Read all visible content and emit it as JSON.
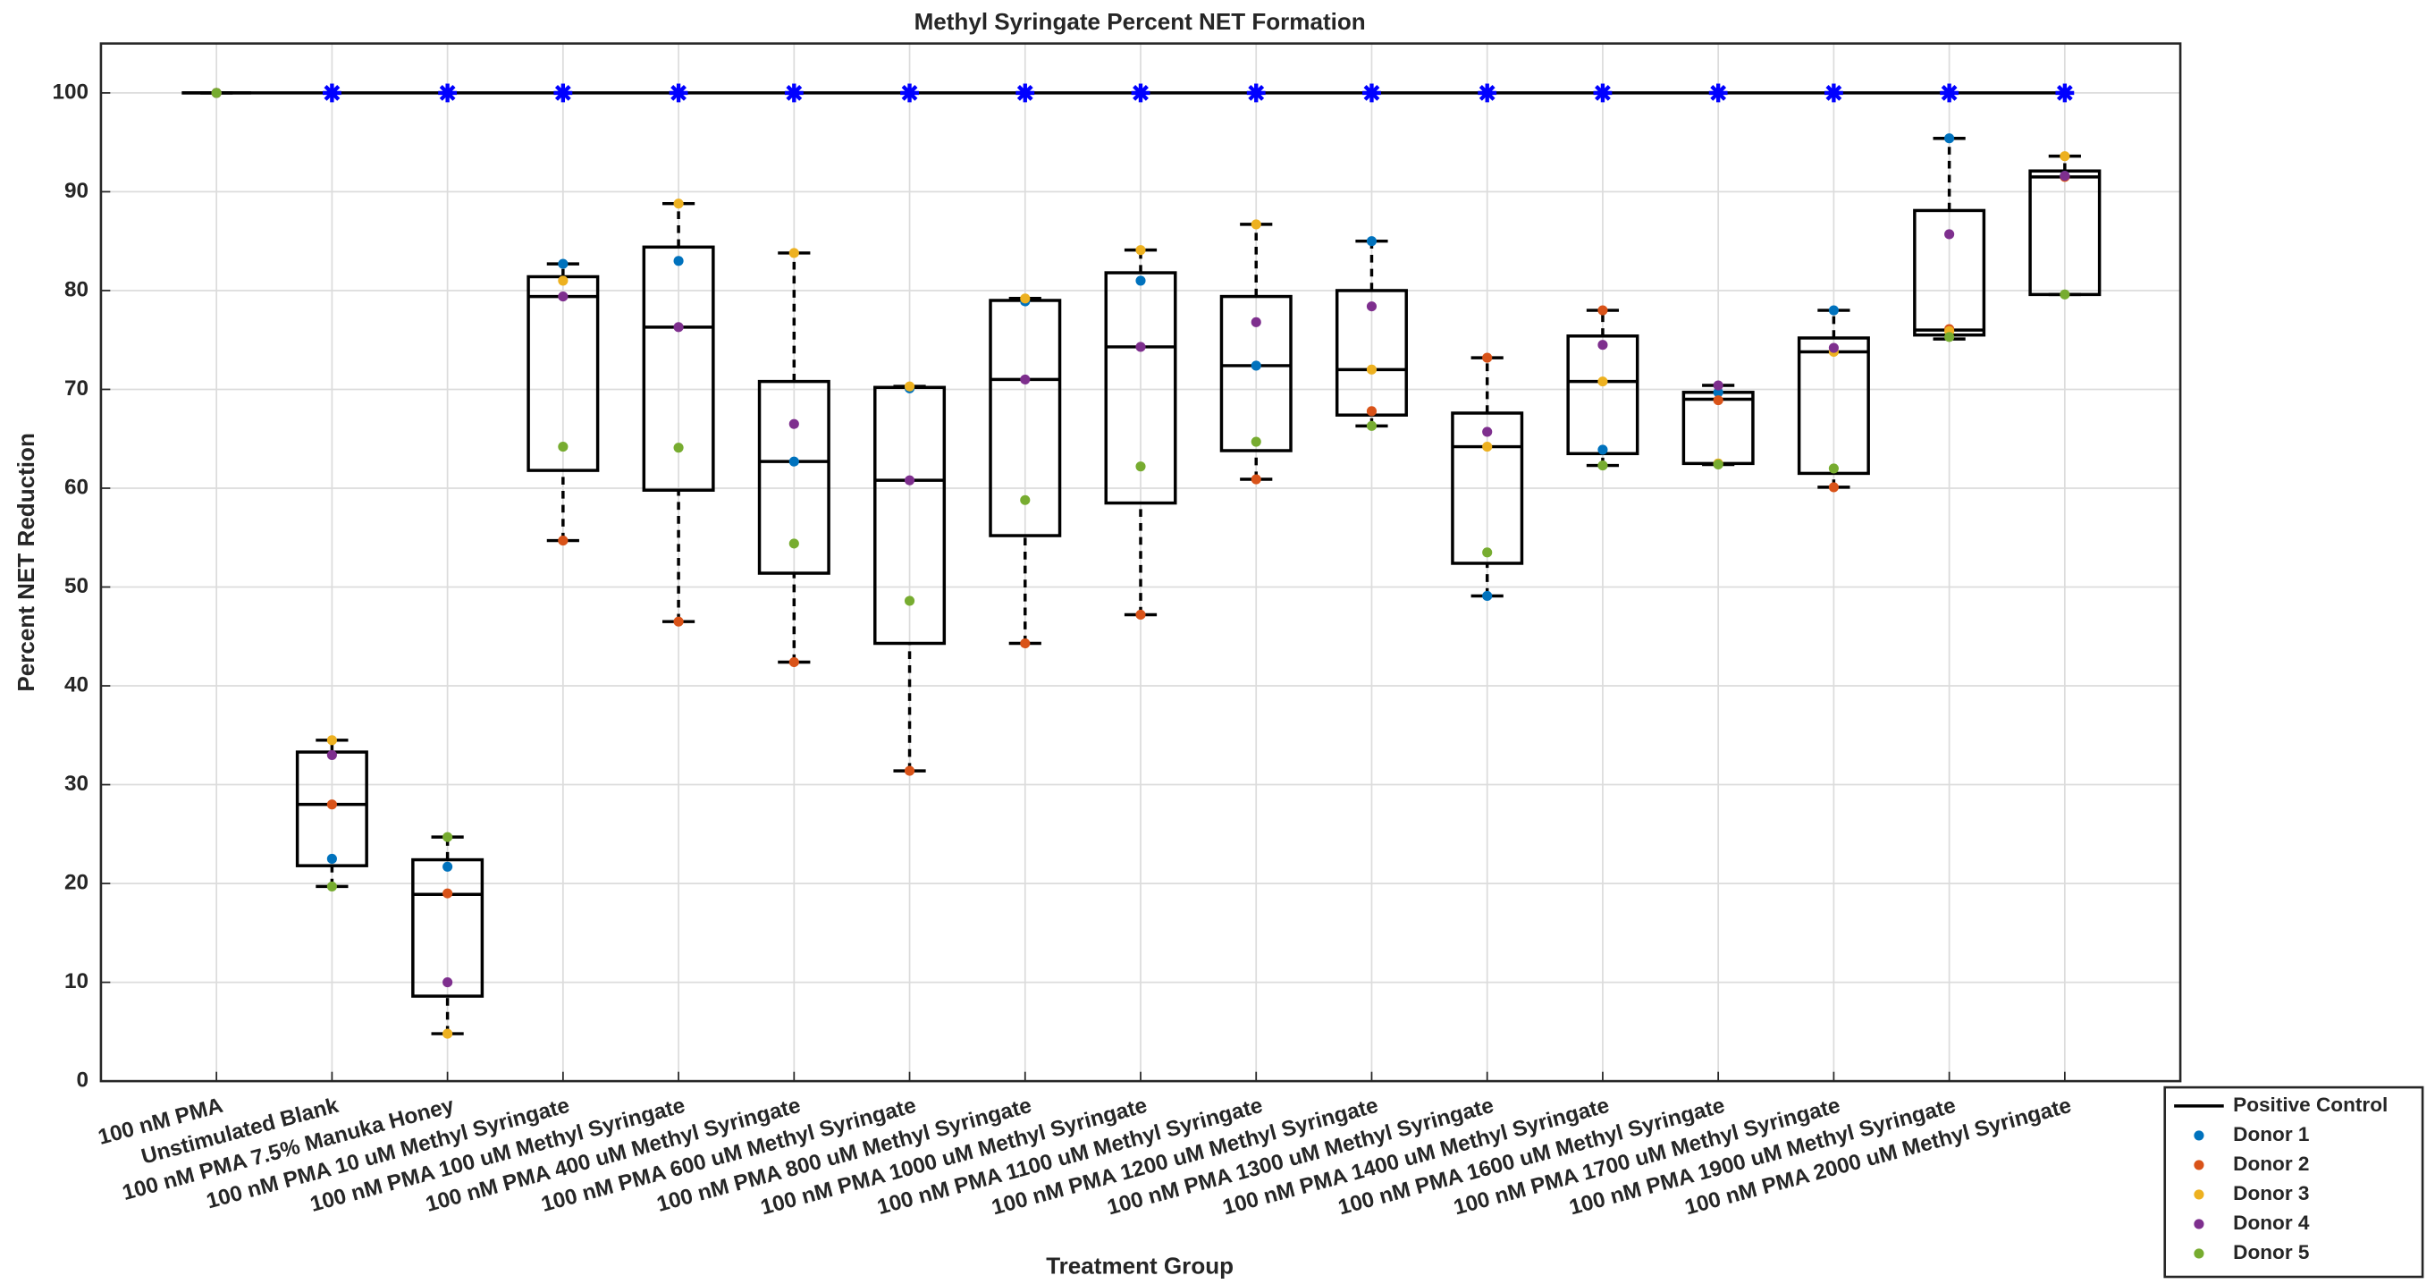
{
  "chart_data": {
    "type": "box",
    "title": "Methyl Syringate Percent NET Formation",
    "x_label": "Treatment Group",
    "y_label": "Percent NET Reduction",
    "categories": [
      "100 nM PMA",
      "Unstimulated Blank",
      "100 nM PMA 7.5% Manuka Honey",
      "100 nM PMA 10 uM Methyl Syringate",
      "100 nM PMA 100 uM Methyl Syringate",
      "100 nM PMA 400 uM Methyl Syringate",
      "100 nM PMA 600 uM Methyl Syringate",
      "100 nM PMA 800 uM Methyl Syringate",
      "100 nM PMA 1000 uM Methyl Syringate",
      "100 nM PMA 1100 uM Methyl Syringate",
      "100 nM PMA 1200 uM Methyl Syringate",
      "100 nM PMA 1300 uM Methyl Syringate",
      "100 nM PMA 1400 uM Methyl Syringate",
      "100 nM PMA 1600 uM Methyl Syringate",
      "100 nM PMA 1700 uM Methyl Syringate",
      "100 nM PMA 1900 uM Methyl Syringate",
      "100 nM PMA 2000 uM Methyl Syringate"
    ],
    "ylim": [
      0,
      105
    ],
    "yticks": [
      0,
      10,
      20,
      30,
      40,
      50,
      60,
      70,
      80,
      90,
      100
    ],
    "grid": true,
    "legend": "outside-bottom-right",
    "positive_control": {
      "name": "Positive Control",
      "color": "#000000",
      "value": 100
    },
    "significance": {
      "color": "#0000ff",
      "values": [
        null,
        100,
        100,
        100,
        100,
        100,
        100,
        100,
        100,
        100,
        100,
        100,
        100,
        100,
        100,
        100,
        100
      ]
    },
    "boxes": [
      {
        "whislo": 100,
        "q1": 100,
        "med": 100,
        "q3": 100,
        "whishi": 100
      },
      {
        "whislo": 19.7,
        "q1": 21.8,
        "med": 28,
        "q3": 33.3,
        "whishi": 34.5
      },
      {
        "whislo": 4.8,
        "q1": 8.6,
        "med": 18.9,
        "q3": 22.4,
        "whishi": 24.7
      },
      {
        "whislo": 54.7,
        "q1": 61.8,
        "med": 79.4,
        "q3": 81.4,
        "whishi": 82.7
      },
      {
        "whislo": 46.5,
        "q1": 59.8,
        "med": 76.3,
        "q3": 84.4,
        "whishi": 88.8
      },
      {
        "whislo": 42.4,
        "q1": 51.4,
        "med": 62.7,
        "q3": 70.8,
        "whishi": 83.8
      },
      {
        "whislo": 31.4,
        "q1": 44.3,
        "med": 60.8,
        "q3": 70.2,
        "whishi": 70.3
      },
      {
        "whislo": 44.3,
        "q1": 55.2,
        "med": 71,
        "q3": 79,
        "whishi": 79.2
      },
      {
        "whislo": 47.2,
        "q1": 58.5,
        "med": 74.3,
        "q3": 81.8,
        "whishi": 84.1
      },
      {
        "whislo": 60.9,
        "q1": 63.8,
        "med": 72.4,
        "q3": 79.4,
        "whishi": 86.7
      },
      {
        "whislo": 66.3,
        "q1": 67.4,
        "med": 72,
        "q3": 80,
        "whishi": 85
      },
      {
        "whislo": 49.1,
        "q1": 52.4,
        "med": 64.2,
        "q3": 67.6,
        "whishi": 73.2
      },
      {
        "whislo": 62.3,
        "q1": 63.5,
        "med": 70.8,
        "q3": 75.4,
        "whishi": 78
      },
      {
        "whislo": 62.4,
        "q1": 62.5,
        "med": 69,
        "q3": 69.7,
        "whishi": 70.4
      },
      {
        "whislo": 60.1,
        "q1": 61.5,
        "med": 73.8,
        "q3": 75.2,
        "whishi": 78
      },
      {
        "whislo": 75.1,
        "q1": 75.5,
        "med": 76,
        "q3": 88.1,
        "whishi": 95.4
      },
      {
        "whislo": 79.6,
        "q1": 79.6,
        "med": 91.5,
        "q3": 92.1,
        "whishi": 93.6
      }
    ],
    "series": [
      {
        "name": "Donor 1",
        "color": "#0072bd",
        "values": [
          100,
          22.5,
          21.7,
          82.7,
          83,
          62.7,
          70.1,
          78.9,
          81,
          72.4,
          85,
          49.1,
          63.9,
          69.7,
          78,
          95.4,
          91.6
        ]
      },
      {
        "name": "Donor 2",
        "color": "#d95319",
        "values": [
          100,
          28,
          19,
          54.7,
          46.5,
          42.4,
          31.4,
          44.3,
          47.2,
          60.9,
          67.8,
          73.2,
          78,
          68.9,
          60.1,
          76.1,
          91.5
        ]
      },
      {
        "name": "Donor 3",
        "color": "#edb120",
        "values": [
          100,
          34.5,
          4.8,
          81,
          88.8,
          83.8,
          70.3,
          79.2,
          84.1,
          86.7,
          72,
          64.2,
          70.8,
          62.5,
          73.8,
          75.9,
          93.6
        ]
      },
      {
        "name": "Donor 4",
        "color": "#7e2f8e",
        "values": [
          100,
          33,
          10,
          79.4,
          76.3,
          66.5,
          60.8,
          71,
          74.3,
          76.8,
          78.4,
          65.7,
          74.5,
          70.4,
          74.2,
          85.7,
          91.6
        ]
      },
      {
        "name": "Donor 5",
        "color": "#77ac30",
        "values": [
          100,
          19.7,
          24.7,
          64.2,
          64.1,
          54.4,
          48.6,
          58.8,
          62.2,
          64.7,
          66.3,
          53.5,
          62.3,
          62.4,
          62,
          75.3,
          79.6
        ]
      }
    ]
  }
}
